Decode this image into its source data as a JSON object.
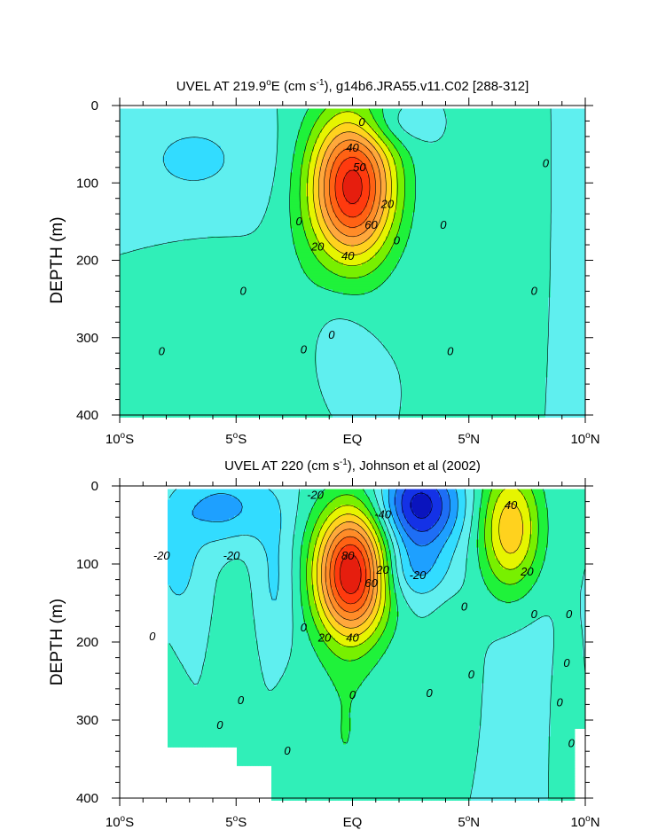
{
  "chart_data": [
    {
      "type": "heatmap",
      "subtype": "contour",
      "title_main": "UVEL AT 219.9",
      "title_sup": "o",
      "title_after_sup": "E (cm s",
      "title_exp": "-1",
      "title_rest": "), g14b6.JRA55.v11.C02 [288-312]",
      "ylabel": "DEPTH (m)",
      "xlabel": "",
      "xlim": [
        -10,
        10
      ],
      "ylim": [
        400,
        0
      ],
      "x_ticks": [
        {
          "value": -10,
          "num": "10",
          "deg": "o",
          "hem": "S"
        },
        {
          "value": -5,
          "num": "5",
          "deg": "o",
          "hem": "S"
        },
        {
          "value": 0,
          "num": "EQ",
          "deg": "",
          "hem": ""
        },
        {
          "value": 5,
          "num": "5",
          "deg": "o",
          "hem": "N"
        },
        {
          "value": 10,
          "num": "10",
          "deg": "o",
          "hem": "N"
        }
      ],
      "y_ticks": [
        {
          "value": 0,
          "label": "0"
        },
        {
          "value": 100,
          "label": "100"
        },
        {
          "value": 200,
          "label": "200"
        },
        {
          "value": 300,
          "label": "300"
        },
        {
          "value": 400,
          "label": "400"
        }
      ],
      "contour_interval": 10,
      "colors": {
        "background": "#30EFB8",
        "positive_light": "#1FF23A",
        "negative_light": "#5FEFEF"
      },
      "features": [
        {
          "type": "jet",
          "x": 0,
          "y": 105,
          "peak": 95,
          "rx": 1.8,
          "ry": 95
        },
        {
          "type": "negative",
          "x": -7,
          "y": 60,
          "peak": -10
        },
        {
          "type": "negative",
          "x": 1.5,
          "y": 30,
          "peak": -20
        },
        {
          "type": "positive",
          "x": 6,
          "y": 200,
          "peak": 10
        },
        {
          "type": "positive",
          "x": -6.5,
          "y": 330,
          "peak": 10
        }
      ],
      "contour_labels": [
        {
          "x": 0.4,
          "y": 22,
          "text": "0"
        },
        {
          "x": 0.0,
          "y": 55,
          "text": "40"
        },
        {
          "x": 0.3,
          "y": 80,
          "text": "50"
        },
        {
          "x": 1.5,
          "y": 128,
          "text": "20"
        },
        {
          "x": 0.8,
          "y": 155,
          "text": "60"
        },
        {
          "x": -1.5,
          "y": 183,
          "text": "20"
        },
        {
          "x": -0.2,
          "y": 195,
          "text": "40"
        },
        {
          "x": -2.3,
          "y": 150,
          "text": "0"
        },
        {
          "x": 1.9,
          "y": 175,
          "text": "0"
        },
        {
          "x": 3.9,
          "y": 155,
          "text": "0"
        },
        {
          "x": 8.3,
          "y": 75,
          "text": "0"
        },
        {
          "x": -4.7,
          "y": 240,
          "text": "0"
        },
        {
          "x": 7.8,
          "y": 240,
          "text": "0"
        },
        {
          "x": -8.2,
          "y": 318,
          "text": "0"
        },
        {
          "x": -2.1,
          "y": 316,
          "text": "0"
        },
        {
          "x": -0.9,
          "y": 297,
          "text": "0"
        },
        {
          "x": 4.2,
          "y": 318,
          "text": "0"
        }
      ]
    },
    {
      "type": "heatmap",
      "subtype": "contour",
      "title_main": "UVEL AT 220 (cm s",
      "title_exp": "-1",
      "title_rest": "), Johnson et al (2002)",
      "ylabel": "DEPTH (m)",
      "xlabel": "",
      "xlim": [
        -10,
        10
      ],
      "ylim": [
        400,
        0
      ],
      "x_ticks": [
        {
          "value": -10,
          "num": "10",
          "deg": "o",
          "hem": "S"
        },
        {
          "value": -5,
          "num": "5",
          "deg": "o",
          "hem": "S"
        },
        {
          "value": 0,
          "num": "EQ",
          "deg": "",
          "hem": ""
        },
        {
          "value": 5,
          "num": "5",
          "deg": "o",
          "hem": "N"
        },
        {
          "value": 10,
          "num": "10",
          "deg": "o",
          "hem": "N"
        }
      ],
      "y_ticks": [
        {
          "value": 0,
          "label": "0"
        },
        {
          "value": 100,
          "label": "100"
        },
        {
          "value": 200,
          "label": "200"
        },
        {
          "value": 300,
          "label": "300"
        },
        {
          "value": 400,
          "label": "400"
        }
      ],
      "contour_interval": 10,
      "colors": {
        "background": "#30EFB8",
        "positive_light": "#1FF23A",
        "negative_light": "#5FEFEF"
      },
      "features": [
        {
          "type": "jet",
          "x": 0,
          "y": 115,
          "peak": 95,
          "rx": 1.6,
          "ry": 90
        },
        {
          "type": "westward",
          "x": 2.8,
          "y": 30,
          "peak": -40
        },
        {
          "type": "eastward",
          "x": 6.8,
          "y": 50,
          "peak": 45
        },
        {
          "type": "negative",
          "x": -5.5,
          "y": 30,
          "peak": -25
        },
        {
          "type": "positive",
          "x": 4.2,
          "y": 220,
          "peak": 10
        }
      ],
      "contour_labels": [
        {
          "x": -1.6,
          "y": 12,
          "text": "-20"
        },
        {
          "x": 1.3,
          "y": 37,
          "text": "-40"
        },
        {
          "x": 6.8,
          "y": 25,
          "text": "40"
        },
        {
          "x": -8.2,
          "y": 90,
          "text": "-20"
        },
        {
          "x": -5.2,
          "y": 90,
          "text": "-20"
        },
        {
          "x": -0.2,
          "y": 90,
          "text": "80"
        },
        {
          "x": 1.3,
          "y": 108,
          "text": "20"
        },
        {
          "x": 0.8,
          "y": 125,
          "text": "60"
        },
        {
          "x": 2.8,
          "y": 115,
          "text": "-20"
        },
        {
          "x": 7.5,
          "y": 110,
          "text": "20"
        },
        {
          "x": 4.8,
          "y": 155,
          "text": "0"
        },
        {
          "x": 7.8,
          "y": 165,
          "text": "0"
        },
        {
          "x": 9.3,
          "y": 165,
          "text": "0"
        },
        {
          "x": -2.1,
          "y": 182,
          "text": "0"
        },
        {
          "x": -1.2,
          "y": 195,
          "text": "20"
        },
        {
          "x": 0.0,
          "y": 195,
          "text": "40"
        },
        {
          "x": -8.6,
          "y": 193,
          "text": "0"
        },
        {
          "x": 9.2,
          "y": 227,
          "text": "0"
        },
        {
          "x": 5.1,
          "y": 242,
          "text": "0"
        },
        {
          "x": 0.0,
          "y": 268,
          "text": "0"
        },
        {
          "x": 3.3,
          "y": 266,
          "text": "0"
        },
        {
          "x": -4.8,
          "y": 275,
          "text": "0"
        },
        {
          "x": 8.9,
          "y": 278,
          "text": "0"
        },
        {
          "x": -5.7,
          "y": 307,
          "text": "0"
        },
        {
          "x": 9.4,
          "y": 330,
          "text": "0"
        },
        {
          "x": -2.8,
          "y": 340,
          "text": "0"
        }
      ]
    }
  ]
}
